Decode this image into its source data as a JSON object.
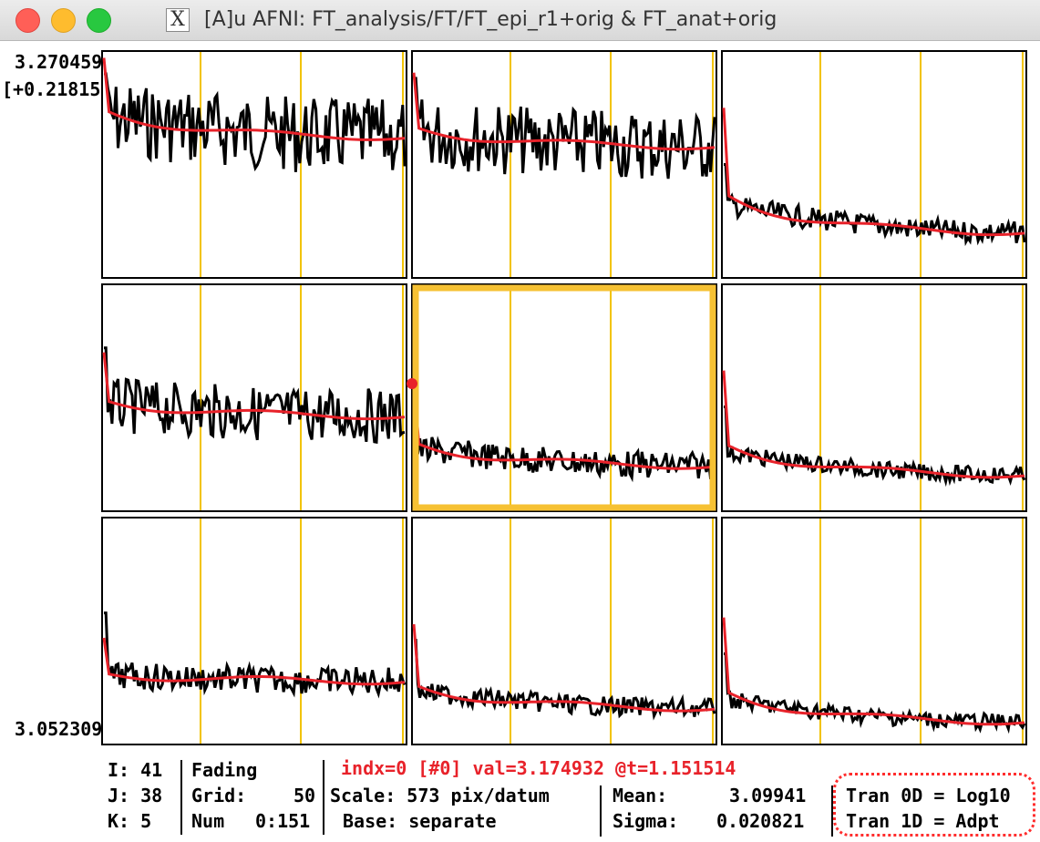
{
  "window": {
    "title": "[A]u AFNI: FT_analysis/FT/FT_epi_r1+orig & FT_anat+orig",
    "app_icon": "x11-icon"
  },
  "graph": {
    "ymax_label": "3.270459",
    "yrange_label": "[+0.21815]",
    "ymin_label": "3.052309",
    "cell_count": "3x3",
    "selected_cell": "center",
    "colors": {
      "timeseries": "#000000",
      "fit": "#e8222a",
      "grid": "#f2c300",
      "highlight": "#f6c133"
    }
  },
  "status": {
    "I": "41",
    "J": "38",
    "K": "5",
    "I_label": "I:",
    "J_label": "J:",
    "K_label": "K:",
    "fading": "Fading",
    "grid_label": "Grid:",
    "grid_value": "50",
    "num_label": "Num",
    "num_value": "0:151",
    "index_line": "indx=0 [#0] val=3.174932 @t=1.151514",
    "scale": "Scale: 573 pix/datum",
    "base": "Base: separate",
    "mean_label": "Mean:",
    "mean_value": "3.09941",
    "sigma_label": "Sigma:",
    "sigma_value": "0.020821",
    "tran0d": "Tran 0D = Log10",
    "tran1d": "Tran 1D = Adpt"
  }
}
